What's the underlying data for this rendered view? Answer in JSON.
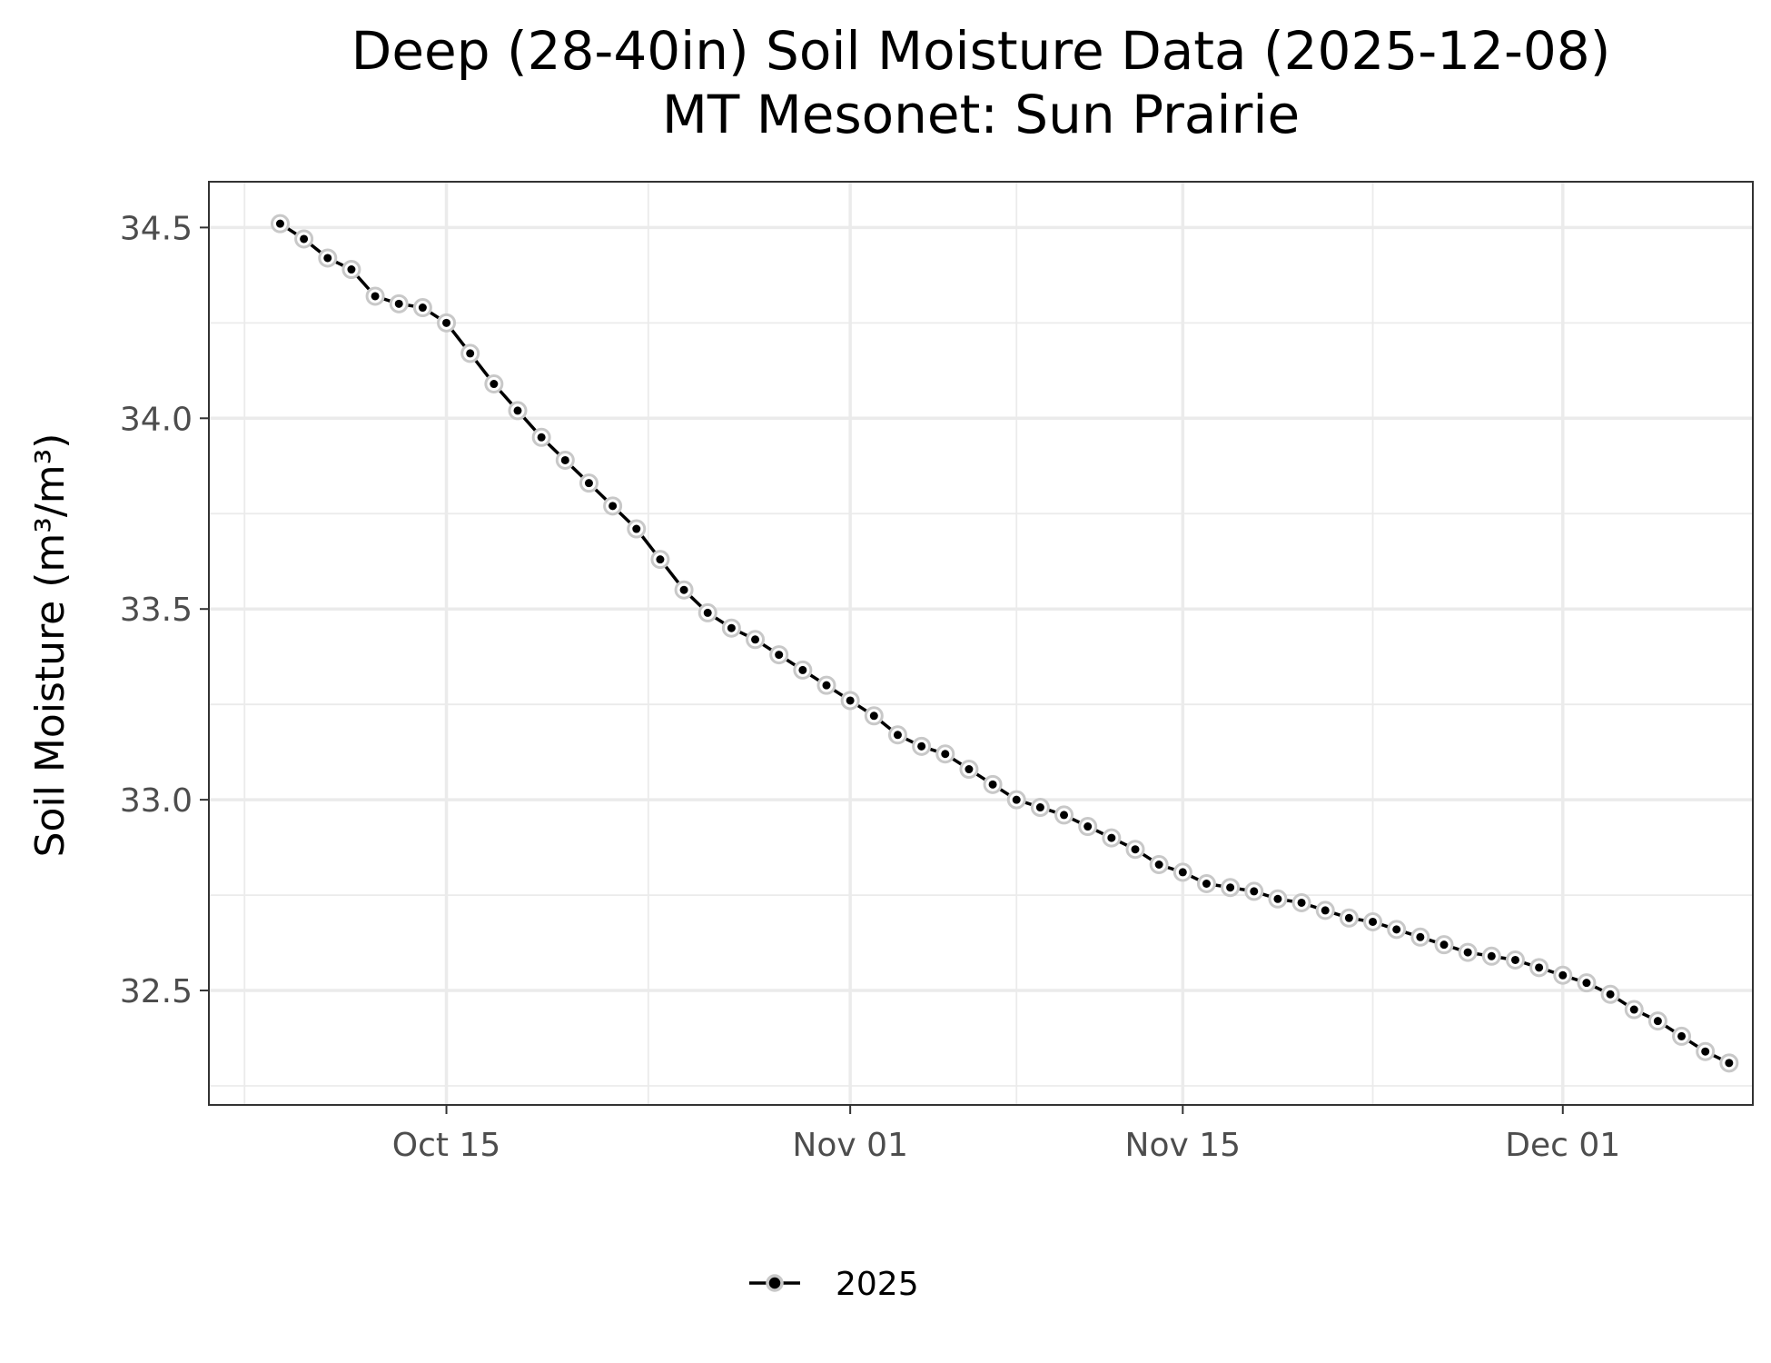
{
  "chart_data": {
    "type": "line",
    "title": "Deep (28-40in) Soil Moisture Data (2025-12-08)",
    "subtitle": "MT Mesonet: Sun Prairie",
    "xlabel": "",
    "ylabel": "Soil Moisture (m³/m³)",
    "x_ticks": [
      {
        "date": "2025-10-15",
        "label": "Oct 15"
      },
      {
        "date": "2025-11-01",
        "label": "Nov 01"
      },
      {
        "date": "2025-11-15",
        "label": "Nov 15"
      },
      {
        "date": "2025-12-01",
        "label": "Dec 01"
      }
    ],
    "y_ticks": [
      {
        "value": 32.5,
        "label": "32.5"
      },
      {
        "value": 33.0,
        "label": "33.0"
      },
      {
        "value": 33.5,
        "label": "33.5"
      },
      {
        "value": 34.0,
        "label": "34.0"
      },
      {
        "value": 34.5,
        "label": "34.5"
      }
    ],
    "xlim": [
      "2025-10-05",
      "2025-12-09"
    ],
    "ylim": [
      32.2,
      34.62
    ],
    "grid": true,
    "legend_position": "bottom",
    "series": [
      {
        "name": "2025",
        "color": "#000000",
        "point_outline": "#c8c8c8",
        "dates": [
          "2025-10-08",
          "2025-10-09",
          "2025-10-10",
          "2025-10-11",
          "2025-10-12",
          "2025-10-13",
          "2025-10-14",
          "2025-10-15",
          "2025-10-16",
          "2025-10-17",
          "2025-10-18",
          "2025-10-19",
          "2025-10-20",
          "2025-10-21",
          "2025-10-22",
          "2025-10-23",
          "2025-10-24",
          "2025-10-25",
          "2025-10-26",
          "2025-10-27",
          "2025-10-28",
          "2025-10-29",
          "2025-10-30",
          "2025-10-31",
          "2025-11-01",
          "2025-11-02",
          "2025-11-03",
          "2025-11-04",
          "2025-11-05",
          "2025-11-06",
          "2025-11-07",
          "2025-11-08",
          "2025-11-09",
          "2025-11-10",
          "2025-11-11",
          "2025-11-12",
          "2025-11-13",
          "2025-11-14",
          "2025-11-15",
          "2025-11-16",
          "2025-11-17",
          "2025-11-18",
          "2025-11-19",
          "2025-11-20",
          "2025-11-21",
          "2025-11-22",
          "2025-11-23",
          "2025-11-24",
          "2025-11-25",
          "2025-11-26",
          "2025-11-27",
          "2025-11-28",
          "2025-11-29",
          "2025-11-30",
          "2025-12-01",
          "2025-12-02",
          "2025-12-03",
          "2025-12-04",
          "2025-12-05",
          "2025-12-06",
          "2025-12-07",
          "2025-12-08"
        ],
        "values": [
          34.51,
          34.47,
          34.42,
          34.39,
          34.32,
          34.3,
          34.29,
          34.25,
          34.17,
          34.09,
          34.02,
          33.95,
          33.89,
          33.83,
          33.77,
          33.71,
          33.63,
          33.55,
          33.49,
          33.45,
          33.42,
          33.38,
          33.34,
          33.3,
          33.26,
          33.22,
          33.17,
          33.14,
          33.12,
          33.08,
          33.04,
          33.0,
          32.98,
          32.96,
          32.93,
          32.9,
          32.87,
          32.83,
          32.81,
          32.78,
          32.77,
          32.76,
          32.74,
          32.73,
          32.71,
          32.69,
          32.68,
          32.66,
          32.64,
          32.62,
          32.6,
          32.59,
          32.58,
          32.56,
          32.54,
          32.52,
          32.49,
          32.45,
          32.42,
          32.38,
          32.34,
          32.31
        ]
      }
    ]
  }
}
